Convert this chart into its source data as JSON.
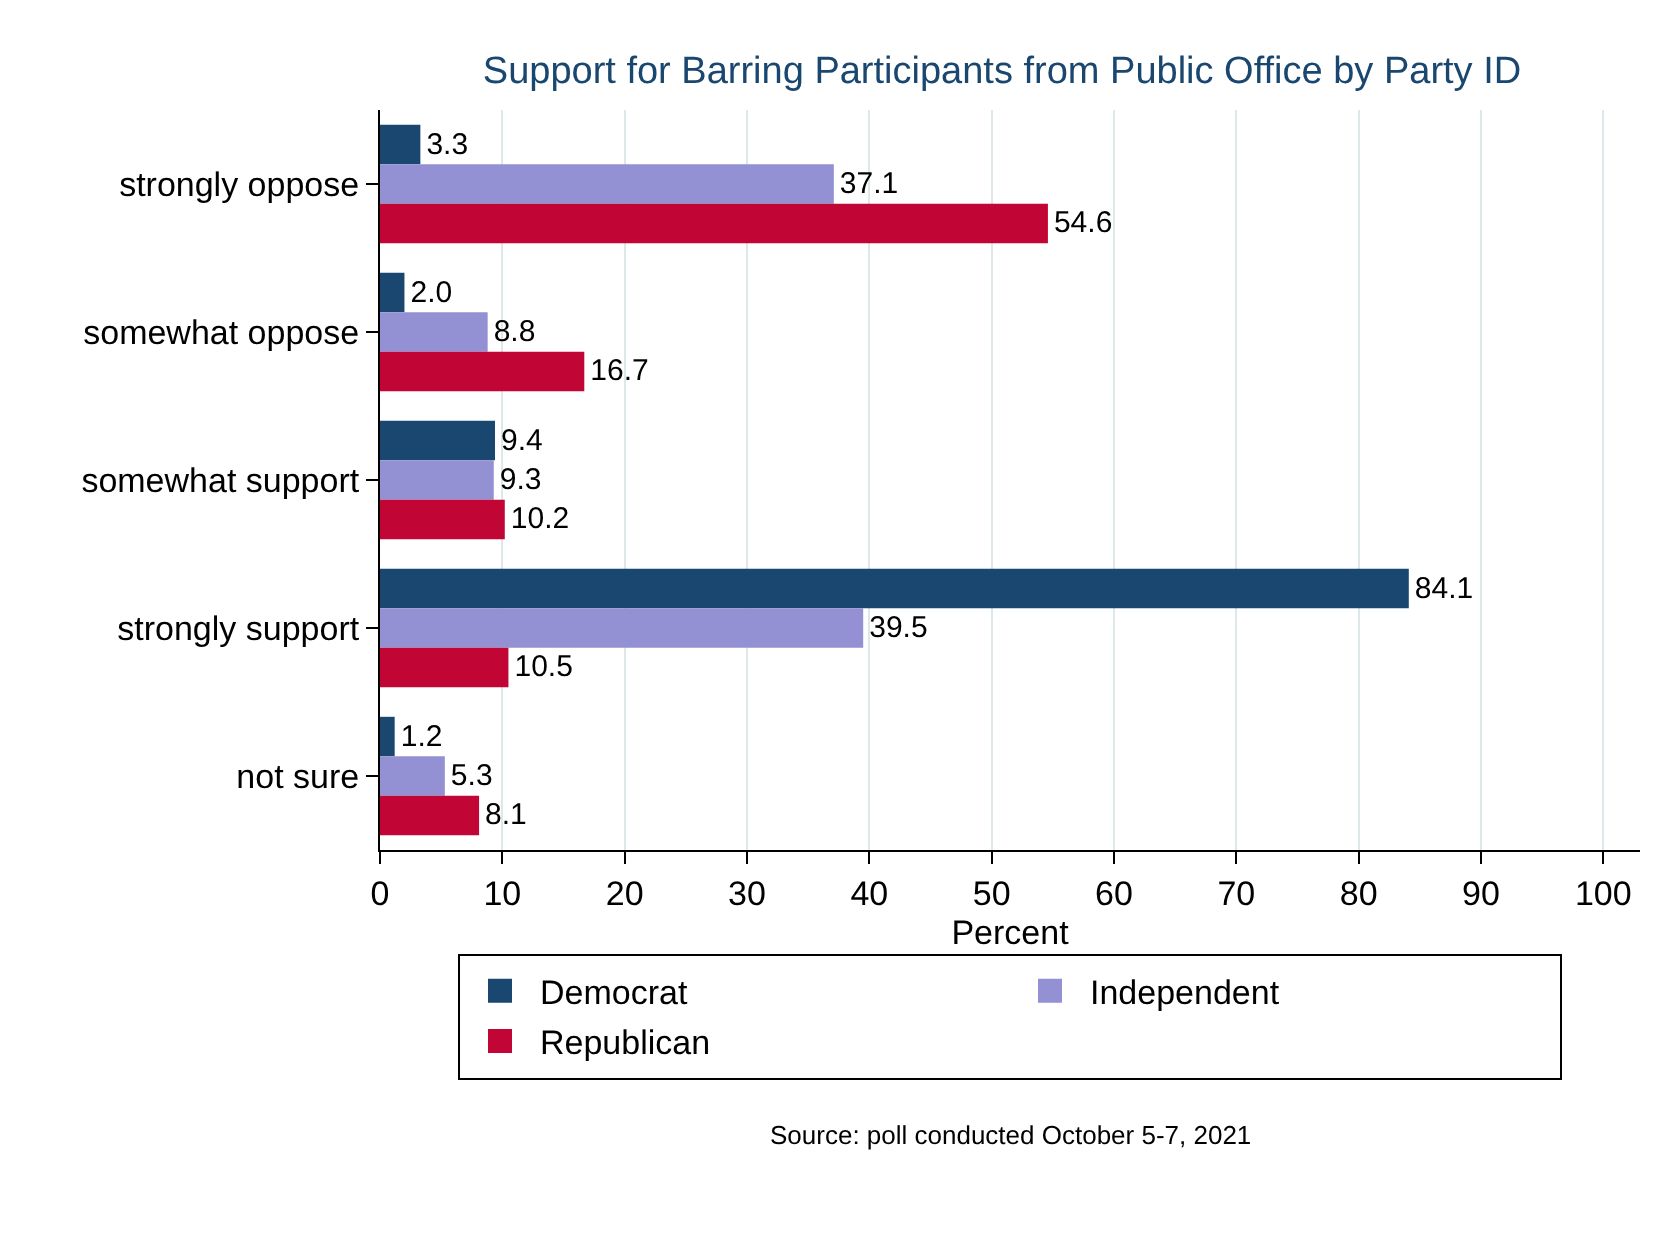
{
  "chart_data": {
    "type": "bar",
    "orientation": "horizontal",
    "title": "Support for Barring Participants from Public Office by Party ID",
    "xlabel": "Percent",
    "categories": [
      "strongly oppose",
      "somewhat oppose",
      "somewhat support",
      "strongly support",
      "not sure"
    ],
    "series": [
      {
        "name": "Democrat",
        "color": "#1a476f",
        "values": [
          3.3,
          2.0,
          9.4,
          84.1,
          1.2
        ],
        "value_labels": [
          "3.3",
          "2.0",
          "9.4",
          "84.1",
          "1.2"
        ]
      },
      {
        "name": "Independent",
        "color": "#9391d4",
        "values": [
          37.1,
          8.8,
          9.3,
          39.5,
          5.3
        ],
        "value_labels": [
          "37.1",
          "8.8",
          "9.3",
          "39.5",
          "5.3"
        ]
      },
      {
        "name": "Republican",
        "color": "#c10534",
        "values": [
          54.6,
          16.7,
          10.2,
          10.5,
          8.1
        ],
        "value_labels": [
          "54.6",
          "16.7",
          "10.2",
          "10.5",
          "8.1"
        ]
      }
    ],
    "xlim": [
      0,
      103
    ],
    "xticks": [
      0,
      10,
      20,
      30,
      40,
      50,
      60,
      70,
      80,
      90,
      100
    ],
    "grid": "x",
    "legend": "bottom",
    "annotations": [
      "Source: poll conducted October 5-7, 2021"
    ]
  }
}
